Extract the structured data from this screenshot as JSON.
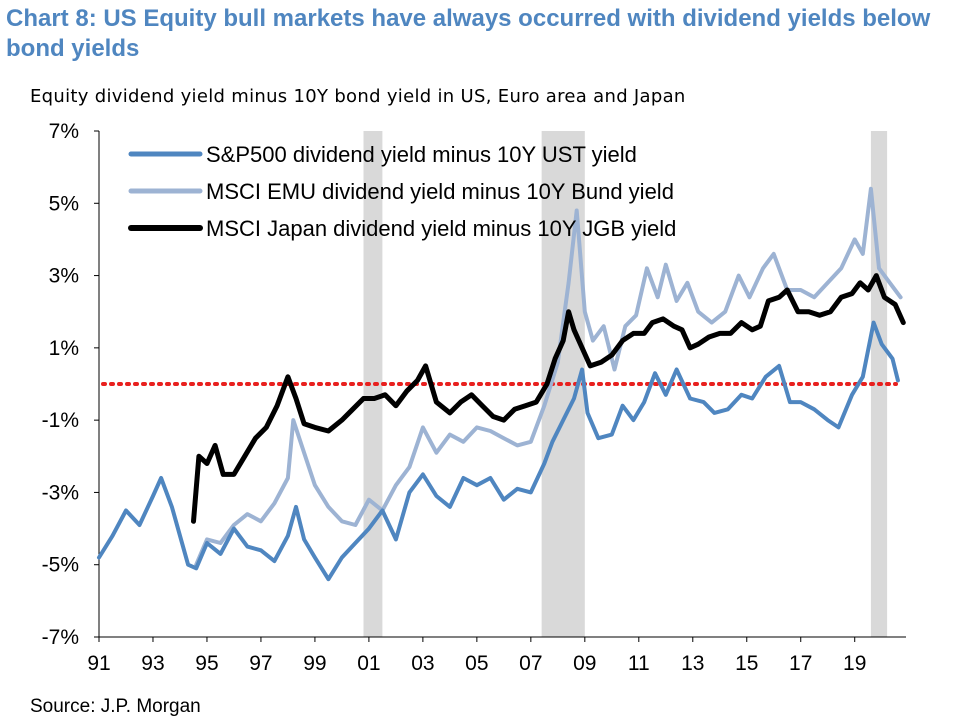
{
  "page": {
    "title": "Chart 8: US Equity bull markets have always occurred with dividend yields below bond yields",
    "subtitle": "Equity dividend yield minus 10Y bond yield in US, Euro area and Japan",
    "source": "Source: J.P. Morgan"
  },
  "chart_data": {
    "type": "line",
    "xlim": [
      1991,
      2020.9
    ],
    "ylim": [
      -7,
      7
    ],
    "y_ticks": [
      7,
      5,
      3,
      1,
      -1,
      -3,
      -5,
      -7
    ],
    "y_tick_labels": [
      "7%",
      "5%",
      "3%",
      "1%",
      "-1%",
      "-3%",
      "-5%",
      "-7%"
    ],
    "x_ticks": [
      1991,
      1993,
      1995,
      1997,
      1999,
      2001,
      2003,
      2005,
      2007,
      2009,
      2011,
      2013,
      2015,
      2017,
      2019
    ],
    "x_tick_labels": [
      "91",
      "93",
      "95",
      "97",
      "99",
      "01",
      "03",
      "05",
      "07",
      "09",
      "11",
      "13",
      "15",
      "17",
      "19"
    ],
    "legend_position": "top-left",
    "shaded_periods": [
      [
        2000.8,
        2001.5
      ],
      [
        2007.4,
        2009.0
      ],
      [
        2019.6,
        2020.2
      ]
    ],
    "zero_line": {
      "y": 0,
      "color": "#e8201e",
      "style": "dotted"
    },
    "series": [
      {
        "name": "S&P500 dividend yield minus 10Y UST yield",
        "color": "#4f86c0",
        "width": 4,
        "points": [
          [
            1991.0,
            -4.8
          ],
          [
            1991.5,
            -4.2
          ],
          [
            1992.0,
            -3.5
          ],
          [
            1992.5,
            -3.9
          ],
          [
            1993.0,
            -3.1
          ],
          [
            1993.3,
            -2.6
          ],
          [
            1993.7,
            -3.4
          ],
          [
            1994.0,
            -4.2
          ],
          [
            1994.3,
            -5.0
          ],
          [
            1994.6,
            -5.1
          ],
          [
            1995.0,
            -4.4
          ],
          [
            1995.5,
            -4.7
          ],
          [
            1996.0,
            -4.0
          ],
          [
            1996.5,
            -4.5
          ],
          [
            1997.0,
            -4.6
          ],
          [
            1997.5,
            -4.9
          ],
          [
            1998.0,
            -4.2
          ],
          [
            1998.3,
            -3.4
          ],
          [
            1998.6,
            -4.3
          ],
          [
            1999.0,
            -4.8
          ],
          [
            1999.5,
            -5.4
          ],
          [
            2000.0,
            -4.8
          ],
          [
            2000.5,
            -4.4
          ],
          [
            2001.0,
            -4.0
          ],
          [
            2001.5,
            -3.5
          ],
          [
            2002.0,
            -4.3
          ],
          [
            2002.5,
            -3.0
          ],
          [
            2003.0,
            -2.5
          ],
          [
            2003.5,
            -3.1
          ],
          [
            2004.0,
            -3.4
          ],
          [
            2004.5,
            -2.6
          ],
          [
            2005.0,
            -2.8
          ],
          [
            2005.5,
            -2.6
          ],
          [
            2006.0,
            -3.2
          ],
          [
            2006.5,
            -2.9
          ],
          [
            2007.0,
            -3.0
          ],
          [
            2007.5,
            -2.2
          ],
          [
            2007.8,
            -1.6
          ],
          [
            2008.2,
            -1.0
          ],
          [
            2008.6,
            -0.4
          ],
          [
            2008.9,
            0.4
          ],
          [
            2009.1,
            -0.8
          ],
          [
            2009.5,
            -1.5
          ],
          [
            2010.0,
            -1.4
          ],
          [
            2010.4,
            -0.6
          ],
          [
            2010.8,
            -1.0
          ],
          [
            2011.2,
            -0.5
          ],
          [
            2011.6,
            0.3
          ],
          [
            2012.0,
            -0.3
          ],
          [
            2012.4,
            0.4
          ],
          [
            2012.9,
            -0.4
          ],
          [
            2013.4,
            -0.5
          ],
          [
            2013.8,
            -0.8
          ],
          [
            2014.3,
            -0.7
          ],
          [
            2014.8,
            -0.3
          ],
          [
            2015.2,
            -0.4
          ],
          [
            2015.7,
            0.2
          ],
          [
            2016.2,
            0.5
          ],
          [
            2016.6,
            -0.5
          ],
          [
            2017.0,
            -0.5
          ],
          [
            2017.5,
            -0.7
          ],
          [
            2018.0,
            -1.0
          ],
          [
            2018.4,
            -1.2
          ],
          [
            2018.9,
            -0.3
          ],
          [
            2019.3,
            0.2
          ],
          [
            2019.7,
            1.7
          ],
          [
            2020.0,
            1.1
          ],
          [
            2020.4,
            0.7
          ],
          [
            2020.6,
            0.1
          ]
        ]
      },
      {
        "name": "MSCI EMU dividend yield minus 10Y Bund yield",
        "color": "#9db3d3",
        "width": 4,
        "points": [
          [
            1994.6,
            -5.0
          ],
          [
            1995.0,
            -4.3
          ],
          [
            1995.5,
            -4.4
          ],
          [
            1996.0,
            -3.9
          ],
          [
            1996.5,
            -3.6
          ],
          [
            1997.0,
            -3.8
          ],
          [
            1997.5,
            -3.3
          ],
          [
            1998.0,
            -2.6
          ],
          [
            1998.2,
            -1.0
          ],
          [
            1998.6,
            -1.9
          ],
          [
            1999.0,
            -2.8
          ],
          [
            1999.5,
            -3.4
          ],
          [
            2000.0,
            -3.8
          ],
          [
            2000.5,
            -3.9
          ],
          [
            2001.0,
            -3.2
          ],
          [
            2001.5,
            -3.5
          ],
          [
            2002.0,
            -2.8
          ],
          [
            2002.5,
            -2.3
          ],
          [
            2003.0,
            -1.2
          ],
          [
            2003.5,
            -1.9
          ],
          [
            2004.0,
            -1.4
          ],
          [
            2004.5,
            -1.6
          ],
          [
            2005.0,
            -1.2
          ],
          [
            2005.5,
            -1.3
          ],
          [
            2006.0,
            -1.5
          ],
          [
            2006.5,
            -1.7
          ],
          [
            2007.0,
            -1.6
          ],
          [
            2007.5,
            -0.6
          ],
          [
            2008.0,
            0.6
          ],
          [
            2008.4,
            2.8
          ],
          [
            2008.7,
            4.8
          ],
          [
            2009.0,
            2.0
          ],
          [
            2009.3,
            1.2
          ],
          [
            2009.7,
            1.6
          ],
          [
            2010.1,
            0.4
          ],
          [
            2010.5,
            1.6
          ],
          [
            2010.9,
            1.9
          ],
          [
            2011.3,
            3.2
          ],
          [
            2011.7,
            2.4
          ],
          [
            2012.0,
            3.3
          ],
          [
            2012.4,
            2.3
          ],
          [
            2012.8,
            2.8
          ],
          [
            2013.2,
            2.0
          ],
          [
            2013.7,
            1.7
          ],
          [
            2014.2,
            2.0
          ],
          [
            2014.7,
            3.0
          ],
          [
            2015.1,
            2.4
          ],
          [
            2015.6,
            3.2
          ],
          [
            2016.0,
            3.6
          ],
          [
            2016.5,
            2.6
          ],
          [
            2017.0,
            2.6
          ],
          [
            2017.5,
            2.4
          ],
          [
            2018.0,
            2.8
          ],
          [
            2018.5,
            3.2
          ],
          [
            2019.0,
            4.0
          ],
          [
            2019.3,
            3.6
          ],
          [
            2019.6,
            5.4
          ],
          [
            2019.9,
            3.2
          ],
          [
            2020.3,
            2.8
          ],
          [
            2020.7,
            2.4
          ]
        ]
      },
      {
        "name": "MSCI Japan dividend yield minus 10Y JGB yield",
        "color": "#000000",
        "width": 5,
        "points": [
          [
            1994.5,
            -3.8
          ],
          [
            1994.7,
            -2.0
          ],
          [
            1995.0,
            -2.2
          ],
          [
            1995.3,
            -1.7
          ],
          [
            1995.6,
            -2.5
          ],
          [
            1996.0,
            -2.5
          ],
          [
            1996.4,
            -2.0
          ],
          [
            1996.8,
            -1.5
          ],
          [
            1997.2,
            -1.2
          ],
          [
            1997.6,
            -0.6
          ],
          [
            1998.0,
            0.2
          ],
          [
            1998.3,
            -0.4
          ],
          [
            1998.6,
            -1.1
          ],
          [
            1999.0,
            -1.2
          ],
          [
            1999.5,
            -1.3
          ],
          [
            2000.0,
            -1.0
          ],
          [
            2000.4,
            -0.7
          ],
          [
            2000.8,
            -0.4
          ],
          [
            2001.2,
            -0.4
          ],
          [
            2001.6,
            -0.3
          ],
          [
            2002.0,
            -0.6
          ],
          [
            2002.4,
            -0.2
          ],
          [
            2002.8,
            0.1
          ],
          [
            2003.1,
            0.5
          ],
          [
            2003.5,
            -0.5
          ],
          [
            2004.0,
            -0.8
          ],
          [
            2004.4,
            -0.5
          ],
          [
            2004.8,
            -0.3
          ],
          [
            2005.2,
            -0.6
          ],
          [
            2005.6,
            -0.9
          ],
          [
            2006.0,
            -1.0
          ],
          [
            2006.4,
            -0.7
          ],
          [
            2006.8,
            -0.6
          ],
          [
            2007.2,
            -0.5
          ],
          [
            2007.6,
            0.0
          ],
          [
            2007.9,
            0.7
          ],
          [
            2008.2,
            1.2
          ],
          [
            2008.4,
            2.0
          ],
          [
            2008.6,
            1.5
          ],
          [
            2008.9,
            1.0
          ],
          [
            2009.2,
            0.5
          ],
          [
            2009.6,
            0.6
          ],
          [
            2010.0,
            0.8
          ],
          [
            2010.4,
            1.2
          ],
          [
            2010.8,
            1.4
          ],
          [
            2011.2,
            1.4
          ],
          [
            2011.5,
            1.7
          ],
          [
            2011.9,
            1.8
          ],
          [
            2012.3,
            1.6
          ],
          [
            2012.6,
            1.5
          ],
          [
            2012.9,
            1.0
          ],
          [
            2013.2,
            1.1
          ],
          [
            2013.6,
            1.3
          ],
          [
            2014.0,
            1.4
          ],
          [
            2014.4,
            1.4
          ],
          [
            2014.8,
            1.7
          ],
          [
            2015.2,
            1.5
          ],
          [
            2015.5,
            1.6
          ],
          [
            2015.8,
            2.3
          ],
          [
            2016.2,
            2.4
          ],
          [
            2016.5,
            2.6
          ],
          [
            2016.9,
            2.0
          ],
          [
            2017.3,
            2.0
          ],
          [
            2017.7,
            1.9
          ],
          [
            2018.1,
            2.0
          ],
          [
            2018.5,
            2.4
          ],
          [
            2018.9,
            2.5
          ],
          [
            2019.2,
            2.8
          ],
          [
            2019.5,
            2.6
          ],
          [
            2019.8,
            3.0
          ],
          [
            2020.1,
            2.4
          ],
          [
            2020.5,
            2.2
          ],
          [
            2020.8,
            1.7
          ]
        ]
      }
    ]
  }
}
